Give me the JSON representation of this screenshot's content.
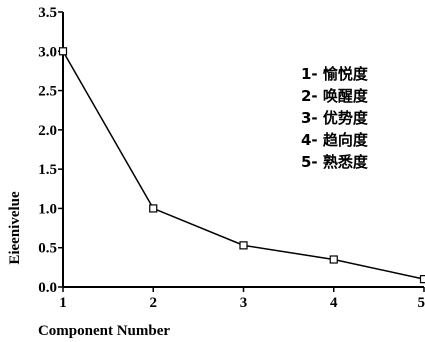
{
  "chart_data": {
    "type": "line",
    "title": "",
    "xlabel": "Component Number",
    "ylabel": "Eieenivelue",
    "x": [
      1,
      2,
      3,
      4,
      5
    ],
    "series": [
      {
        "values": [
          3.0,
          1.0,
          0.53,
          0.35,
          0.1
        ]
      }
    ],
    "xlim": [
      1,
      5
    ],
    "ylim": [
      0.0,
      3.5
    ],
    "xticks": [
      "1",
      "2",
      "3",
      "4",
      "5"
    ],
    "yticks": [
      "0.0",
      "0.5",
      "1.0",
      "1.5",
      "2.0",
      "2.5",
      "3.0",
      "3.5"
    ],
    "ytick_values": [
      0.0,
      0.5,
      1.0,
      1.5,
      2.0,
      2.5,
      3.0,
      3.5
    ],
    "grid": false,
    "marker": "square",
    "line_color": "#000000",
    "annotations": [
      "1- 愉悦度",
      "2- 唤醒度",
      "3- 优势度",
      "4- 趋向度",
      "5- 熟悉度"
    ]
  }
}
